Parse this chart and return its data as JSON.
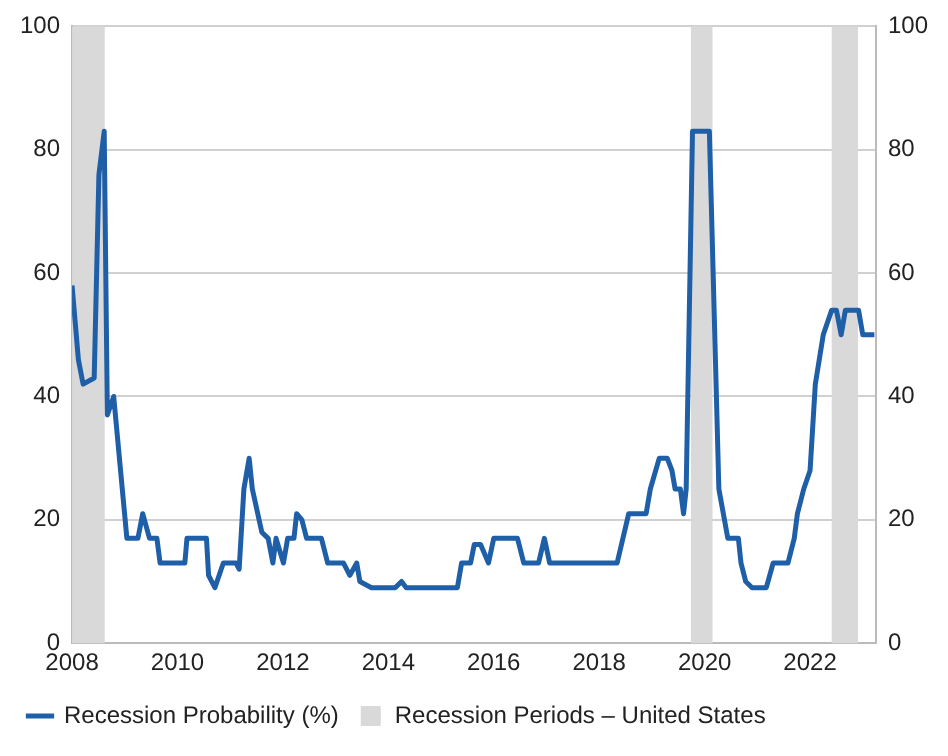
{
  "chart_data": {
    "type": "line",
    "xlim": [
      2008,
      2023.25
    ],
    "xticks": [
      2008,
      2010,
      2012,
      2014,
      2016,
      2018,
      2020,
      2022
    ],
    "ylim": [
      0,
      100
    ],
    "yticks": [
      0,
      20,
      40,
      60,
      80,
      100
    ],
    "y2lim": [
      0,
      100
    ],
    "y2ticks": [
      0,
      20,
      40,
      60,
      80,
      100
    ],
    "grid": "y",
    "legend": "bottom left",
    "marker": "none",
    "line_style": "solid",
    "series": [
      {
        "name": "Recession Probability (%)",
        "color": "#1f5fa8",
        "x": [
          2008.0,
          2008.12,
          2008.21,
          2008.42,
          2008.51,
          2008.61,
          2008.67,
          2008.79,
          2009.04,
          2009.25,
          2009.34,
          2009.47,
          2009.61,
          2009.67,
          2010.14,
          2010.18,
          2010.55,
          2010.59,
          2010.71,
          2010.87,
          2011.11,
          2011.17,
          2011.26,
          2011.36,
          2011.42,
          2011.6,
          2011.72,
          2011.81,
          2011.87,
          2012.01,
          2012.09,
          2012.21,
          2012.26,
          2012.36,
          2012.45,
          2012.73,
          2012.85,
          2013.15,
          2013.27,
          2013.4,
          2013.46,
          2013.68,
          2014.13,
          2014.25,
          2014.34,
          2015.31,
          2015.39,
          2015.56,
          2015.63,
          2015.75,
          2015.9,
          2016.0,
          2016.45,
          2016.57,
          2016.85,
          2016.96,
          2017.06,
          2018.34,
          2018.56,
          2018.89,
          2018.97,
          2019.14,
          2019.29,
          2019.38,
          2019.44,
          2019.54,
          2019.6,
          2019.65,
          2019.77,
          2020.09,
          2020.27,
          2020.44,
          2020.64,
          2020.69,
          2020.78,
          2020.9,
          2021.17,
          2021.3,
          2021.58,
          2021.7,
          2021.76,
          2021.88,
          2022.0,
          2022.1,
          2022.25,
          2022.41,
          2022.5,
          2022.59,
          2022.67,
          2022.92,
          2023.0,
          2023.22
        ],
        "values": [
          58,
          46,
          42,
          43,
          76,
          83,
          37,
          40,
          17,
          17,
          21,
          17,
          17,
          13,
          13,
          17,
          17,
          11,
          9,
          13,
          13,
          12,
          25,
          30,
          25,
          18,
          17,
          13,
          17,
          13,
          17,
          17,
          21,
          20,
          17,
          17,
          13,
          13,
          11,
          13,
          10,
          9,
          9,
          10,
          9,
          9,
          13,
          13,
          16,
          16,
          13,
          17,
          17,
          13,
          13,
          17,
          13,
          13,
          21,
          21,
          25,
          30,
          30,
          28,
          25,
          25,
          21,
          25,
          83,
          83,
          25,
          17,
          17,
          13,
          10,
          9,
          9,
          13,
          13,
          17,
          21,
          25,
          28,
          42,
          50,
          54,
          54,
          50,
          54,
          54,
          50,
          50
        ]
      }
    ],
    "bands": [
      {
        "axis": "x",
        "from": 2008.0,
        "to": 2008.62,
        "label": "Recession Periods – United States",
        "color": "#d9d9d9"
      },
      {
        "axis": "x",
        "from": 2019.74,
        "to": 2020.15,
        "color": "#d9d9d9"
      },
      {
        "axis": "x",
        "from": 2022.41,
        "to": 2022.91,
        "color": "#d9d9d9"
      }
    ]
  }
}
